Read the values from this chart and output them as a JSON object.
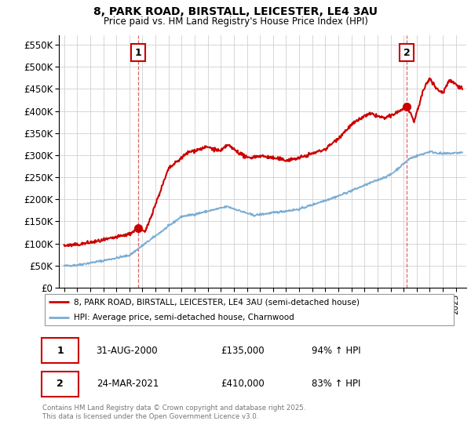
{
  "title_line1": "8, PARK ROAD, BIRSTALL, LEICESTER, LE4 3AU",
  "title_line2": "Price paid vs. HM Land Registry's House Price Index (HPI)",
  "legend_label_red": "8, PARK ROAD, BIRSTALL, LEICESTER, LE4 3AU (semi-detached house)",
  "legend_label_blue": "HPI: Average price, semi-detached house, Charnwood",
  "annotation1_date": "31-AUG-2000",
  "annotation1_price": "£135,000",
  "annotation1_hpi": "94% ↑ HPI",
  "annotation2_date": "24-MAR-2021",
  "annotation2_price": "£410,000",
  "annotation2_hpi": "83% ↑ HPI",
  "footnote": "Contains HM Land Registry data © Crown copyright and database right 2025.\nThis data is licensed under the Open Government Licence v3.0.",
  "red_color": "#cc0000",
  "blue_color": "#7aadd4",
  "ylim_min": 0,
  "ylim_max": 572000,
  "sale1_year": 2000.66,
  "sale1_price": 135000,
  "sale2_year": 2021.23,
  "sale2_price": 410000,
  "xmin": 1994.6,
  "xmax": 2025.8
}
